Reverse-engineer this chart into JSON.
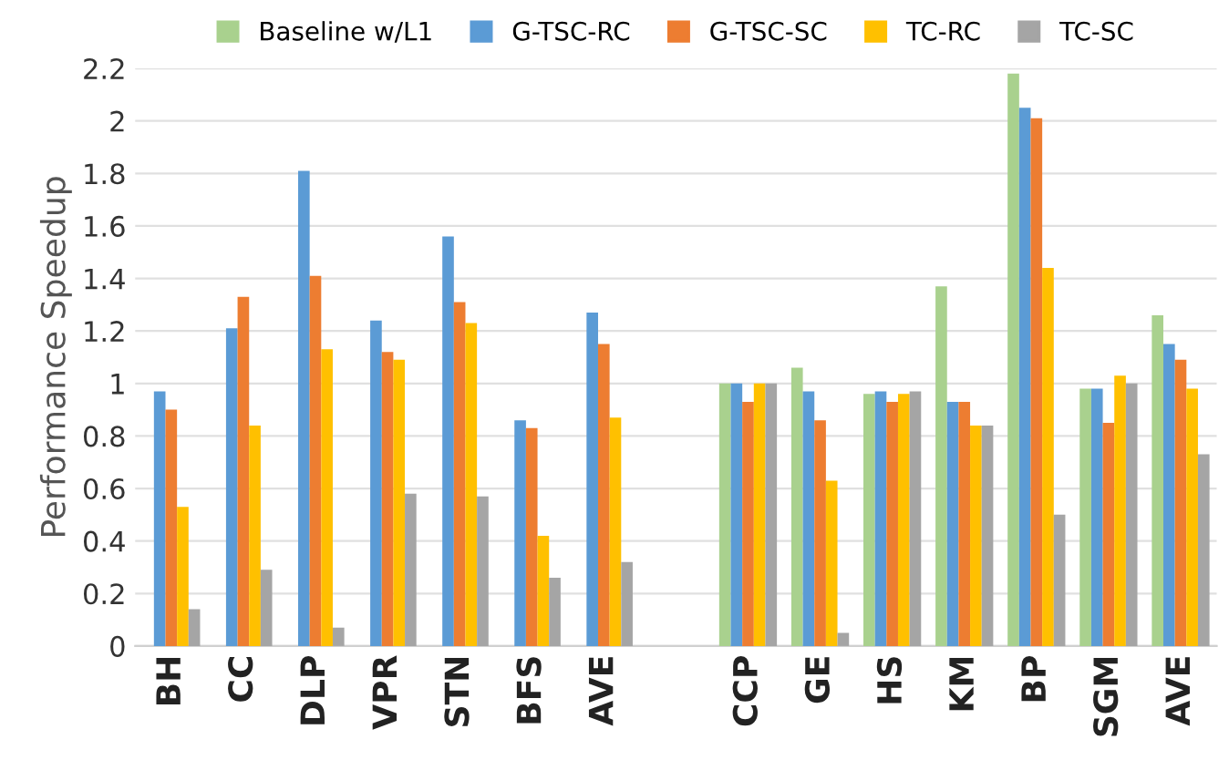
{
  "chart_data": {
    "type": "bar",
    "ylabel": "Performance Speedup",
    "categories": [
      "BH",
      "CC",
      "DLP",
      "VPR",
      "STN",
      "BFS",
      "AVE",
      null,
      "CCP",
      "GE",
      "HS",
      "KM",
      "BP",
      "SGM",
      "AVE"
    ],
    "series": [
      {
        "name": "Baseline w/L1",
        "color": "#a9d18e",
        "values": [
          null,
          null,
          null,
          null,
          null,
          null,
          null,
          null,
          1.0,
          1.06,
          0.96,
          1.37,
          2.18,
          0.98,
          1.26
        ]
      },
      {
        "name": "G-TSC-RC",
        "color": "#5b9bd5",
        "values": [
          0.97,
          1.21,
          1.81,
          1.24,
          1.56,
          0.86,
          1.27,
          null,
          1.0,
          0.97,
          0.97,
          0.93,
          2.05,
          0.98,
          1.15
        ]
      },
      {
        "name": "G-TSC-SC",
        "color": "#ed7d31",
        "values": [
          0.9,
          1.33,
          1.41,
          1.12,
          1.31,
          0.83,
          1.15,
          null,
          0.93,
          0.86,
          0.93,
          0.93,
          2.01,
          0.85,
          1.09
        ]
      },
      {
        "name": "TC-RC",
        "color": "#ffc000",
        "values": [
          0.53,
          0.84,
          1.13,
          1.09,
          1.23,
          0.42,
          0.87,
          null,
          1.0,
          0.63,
          0.96,
          0.84,
          1.44,
          1.03,
          0.98
        ]
      },
      {
        "name": "TC-SC",
        "color": "#a5a5a5",
        "values": [
          0.14,
          0.29,
          0.07,
          0.58,
          0.57,
          0.26,
          0.32,
          null,
          1.0,
          0.05,
          0.97,
          0.84,
          0.5,
          1.0,
          0.73
        ]
      }
    ],
    "ylim": [
      0,
      2.2
    ],
    "yticks": [
      0,
      0.2,
      0.4,
      0.6,
      0.8,
      1,
      1.2,
      1.4,
      1.6,
      1.8,
      2,
      2.2
    ],
    "grid": "y",
    "legend": "top"
  }
}
